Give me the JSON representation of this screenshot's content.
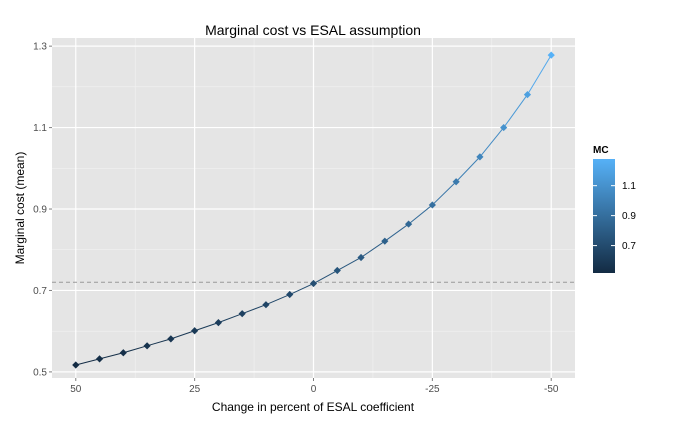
{
  "chart_data": {
    "type": "line",
    "title": "Marginal cost vs ESAL assumption",
    "xlabel": "Change in percent of ESAL coefficient",
    "ylabel": "Marginal cost (mean)",
    "x_reversed": true,
    "xlim": [
      55,
      -55
    ],
    "ylim": [
      0.485,
      1.32
    ],
    "x_ticks": [
      50,
      25,
      0,
      -25,
      -50
    ],
    "x_tick_labels": [
      "50",
      "25",
      "0",
      "-25",
      "-50"
    ],
    "y_ticks": [
      0.5,
      0.7,
      0.9,
      1.1,
      1.3
    ],
    "y_tick_labels": [
      "0.5",
      "0.7",
      "0.9",
      "1.1",
      "1.3"
    ],
    "grid": true,
    "x": [
      50,
      45,
      40,
      35,
      30,
      25,
      20,
      15,
      10,
      5,
      0,
      -5,
      -10,
      -15,
      -20,
      -25,
      -30,
      -35,
      -40,
      -45,
      -50
    ],
    "y": [
      0.517,
      0.532,
      0.547,
      0.564,
      0.581,
      0.601,
      0.621,
      0.643,
      0.665,
      0.69,
      0.717,
      0.749,
      0.781,
      0.821,
      0.863,
      0.91,
      0.967,
      1.028,
      1.1,
      1.181,
      1.278
    ],
    "reference_line": {
      "y": 0.72,
      "style": "dashed",
      "color": "#999999"
    },
    "color_scale": {
      "title": "MC",
      "low_color": "#132B43",
      "high_color": "#56B1F7",
      "range": [
        0.517,
        1.278
      ],
      "ticks": [
        "1.1",
        "0.9",
        "0.7"
      ],
      "tick_values": [
        1.1,
        0.9,
        0.7
      ]
    },
    "legend_position": "right",
    "panel_background": "#E5E5E5"
  }
}
